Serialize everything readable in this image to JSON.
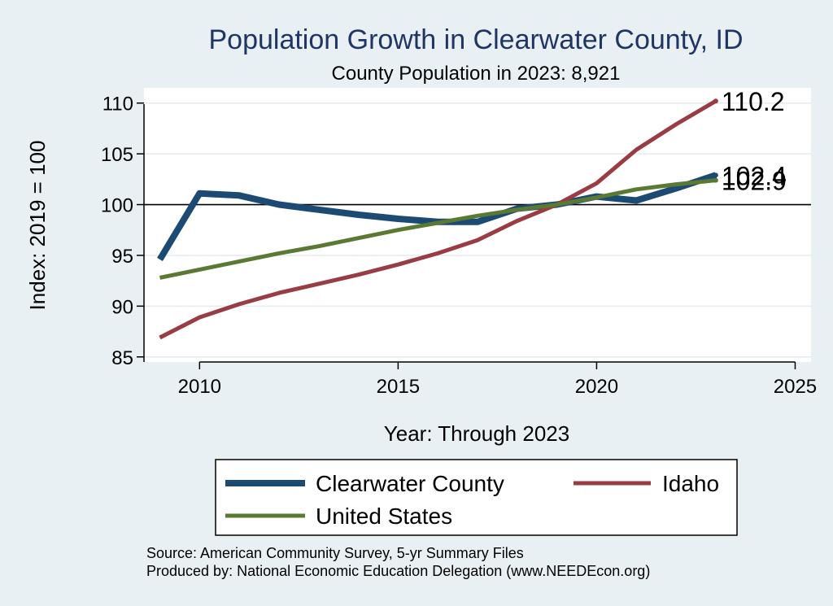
{
  "chart_data": {
    "type": "line",
    "title": "Population Growth in Clearwater County, ID",
    "subtitle": "County Population in 2023: 8,921",
    "xlabel": "Year: Through 2023",
    "ylabel": "Index: 2019 = 100",
    "xlim": [
      2008.6,
      2025.4
    ],
    "ylim": [
      84.5,
      111.5
    ],
    "xticks": [
      2010,
      2015,
      2020,
      2025
    ],
    "yticks": [
      85,
      90,
      95,
      100,
      105,
      110
    ],
    "reference_line": 100,
    "x": [
      2009,
      2010,
      2011,
      2012,
      2013,
      2014,
      2015,
      2016,
      2017,
      2018,
      2019,
      2020,
      2021,
      2022,
      2023
    ],
    "series": [
      {
        "name": "Clearwater  County",
        "color": "#1b4a73",
        "width": 8,
        "values": [
          94.6,
          101.1,
          100.9,
          100.0,
          99.5,
          99.0,
          98.6,
          98.3,
          98.3,
          99.6,
          100.0,
          100.8,
          100.4,
          101.6,
          102.9
        ],
        "end_label": "102.9"
      },
      {
        "name": "Idaho",
        "color": "#9a3c43",
        "width": 5,
        "values": [
          86.9,
          88.9,
          90.2,
          91.3,
          92.2,
          93.1,
          94.1,
          95.2,
          96.5,
          98.4,
          100.0,
          102.1,
          105.4,
          107.9,
          110.2
        ],
        "end_label": "110.2"
      },
      {
        "name": "United States",
        "color": "#5a7a33",
        "width": 5,
        "values": [
          92.8,
          93.6,
          94.4,
          95.2,
          95.9,
          96.7,
          97.5,
          98.2,
          98.9,
          99.5,
          100.0,
          100.7,
          101.5,
          102.0,
          102.4
        ],
        "end_label": "102.4"
      }
    ],
    "legend": {
      "placement": "bottom"
    },
    "source_lines": [
      "Source: American Community Survey, 5-yr Summary Files",
      "Produced by: National Economic Education Delegation (www.NEEDEcon.org)"
    ]
  }
}
